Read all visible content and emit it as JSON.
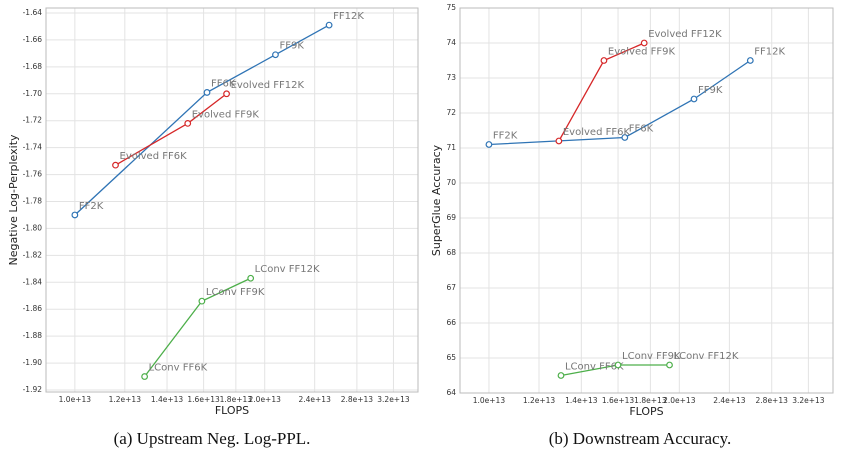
{
  "chart_data": [
    {
      "type": "line",
      "caption": "(a) Upstream Neg. Log-PPL.",
      "x_label": "FLOPS",
      "y_label": "Negative Log-Perplexity",
      "xscale": "log",
      "grid": true,
      "xlim": [
        9000000000000.0,
        35000000000000.0
      ],
      "ylim": [
        -1.92,
        -1.64
      ],
      "xticks": [
        {
          "value": 10000000000000.0,
          "label": "1.0e+13"
        },
        {
          "value": 12000000000000.0,
          "label": "1.2e+13"
        },
        {
          "value": 14000000000000.0,
          "label": "1.4e+13"
        },
        {
          "value": 16000000000000.0,
          "label": "1.6e+13"
        },
        {
          "value": 18000000000000.0,
          "label": "1.8e+13"
        },
        {
          "value": 20000000000000.0,
          "label": "2.0e+13"
        },
        {
          "value": 24000000000000.0,
          "label": "2.4e+13"
        },
        {
          "value": 28000000000000.0,
          "label": "2.8e+13"
        },
        {
          "value": 32000000000000.0,
          "label": "3.2e+13"
        }
      ],
      "yticks": [
        {
          "value": -1.92,
          "label": "-1.92"
        },
        {
          "value": -1.9,
          "label": "-1.90"
        },
        -1.88,
        -1.86,
        -1.84,
        -1.82,
        {
          "value": -1.8,
          "label": "-1.80"
        },
        -1.78,
        -1.76,
        -1.74,
        -1.72,
        {
          "value": -1.7,
          "label": "-1.70"
        },
        -1.68,
        -1.66,
        -1.64
      ],
      "series": [
        {
          "color": "#2f74b5",
          "x": [
            10000000000000.0,
            16200000000000.0,
            20800000000000.0,
            25300000000000.0
          ],
          "values": [
            -1.79,
            -1.699,
            -1.671,
            -1.649
          ],
          "labels": [
            "FF2K",
            "FF6K",
            "FF9K",
            "FF12K"
          ]
        },
        {
          "color": "#d62728",
          "x": [
            11600000000000.0,
            15100000000000.0,
            17400000000000.0
          ],
          "values": [
            -1.753,
            -1.722,
            -1.7
          ],
          "labels": [
            "Evolved FF6K",
            "Evolved FF9K",
            "Evolved FF12K"
          ]
        },
        {
          "color": "#4daf4a",
          "x": [
            12900000000000.0,
            15900000000000.0,
            19000000000000.0
          ],
          "values": [
            -1.91,
            -1.854,
            -1.837
          ],
          "labels": [
            "LConv FF6K",
            "LConv FF9K",
            "LConv FF12K"
          ]
        }
      ]
    },
    {
      "type": "line",
      "caption": "(b) Downstream Accuracy.",
      "x_label": "FLOPS",
      "y_label": "SuperGlue Accuracy",
      "xscale": "log",
      "grid": true,
      "xlim": [
        9000000000000.0,
        35000000000000.0
      ],
      "ylim": [
        64,
        75
      ],
      "xticks": [
        {
          "value": 10000000000000.0,
          "label": "1.0e+13"
        },
        {
          "value": 12000000000000.0,
          "label": "1.2e+13"
        },
        {
          "value": 14000000000000.0,
          "label": "1.4e+13"
        },
        {
          "value": 16000000000000.0,
          "label": "1.6e+13"
        },
        {
          "value": 18000000000000.0,
          "label": "1.8e+13"
        },
        {
          "value": 20000000000000.0,
          "label": "2.0e+13"
        },
        {
          "value": 24000000000000.0,
          "label": "2.4e+13"
        },
        {
          "value": 28000000000000.0,
          "label": "2.8e+13"
        },
        {
          "value": 32000000000000.0,
          "label": "3.2e+13"
        }
      ],
      "yticks": [
        64,
        65,
        66,
        67,
        68,
        69,
        70,
        71,
        72,
        73,
        74,
        75
      ],
      "series": [
        {
          "color": "#2f74b5",
          "x": [
            10000000000000.0,
            16400000000000.0,
            21100000000000.0,
            25900000000000.0
          ],
          "values": [
            71.1,
            71.3,
            72.4,
            73.5
          ],
          "labels": [
            "FF2K",
            "FF6K",
            "FF9K",
            "FF12K"
          ]
        },
        {
          "color": "#d62728",
          "x": [
            12900000000000.0,
            15200000000000.0,
            17600000000000.0
          ],
          "values": [
            71.2,
            73.5,
            74.0
          ],
          "labels": [
            "Evolved FF6K",
            "Evolved FF9K",
            "Evolved FF12K"
          ]
        },
        {
          "color": "#4daf4a",
          "x": [
            13000000000000.0,
            16000000000000.0,
            19300000000000.0
          ],
          "values": [
            64.5,
            64.8,
            64.8
          ],
          "labels": [
            "LConv FF6K",
            "LConv FF9K",
            "LConv FF12K"
          ]
        }
      ]
    }
  ]
}
